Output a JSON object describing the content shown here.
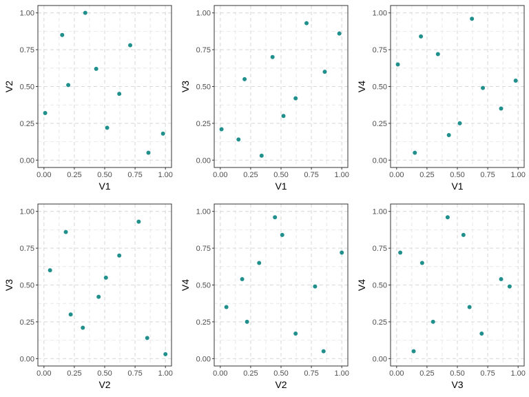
{
  "chart_data": {
    "type": "scatter",
    "point_color": "#21908C",
    "grid": true,
    "variables": {
      "V1": [
        0.01,
        0.15,
        0.2,
        0.34,
        0.43,
        0.52,
        0.62,
        0.71,
        0.86,
        0.98
      ],
      "V2": [
        0.32,
        0.85,
        0.51,
        1.0,
        0.62,
        0.22,
        0.45,
        0.78,
        0.05,
        0.18
      ],
      "V3": [
        0.21,
        0.14,
        0.55,
        0.03,
        0.7,
        0.3,
        0.42,
        0.93,
        0.6,
        0.86
      ],
      "V4": [
        0.65,
        0.05,
        0.84,
        0.72,
        0.17,
        0.25,
        0.96,
        0.49,
        0.35,
        0.54
      ]
    },
    "panels": [
      {
        "x": "V1",
        "y": "V2",
        "xlabel": "V1",
        "ylabel": "V2"
      },
      {
        "x": "V1",
        "y": "V3",
        "xlabel": "V1",
        "ylabel": "V3"
      },
      {
        "x": "V1",
        "y": "V4",
        "xlabel": "V1",
        "ylabel": "V4"
      },
      {
        "x": "V2",
        "y": "V3",
        "xlabel": "V2",
        "ylabel": "V3"
      },
      {
        "x": "V2",
        "y": "V4",
        "xlabel": "V2",
        "ylabel": "V4"
      },
      {
        "x": "V3",
        "y": "V4",
        "xlabel": "V3",
        "ylabel": "V4"
      }
    ],
    "xlim": [
      -0.05,
      1.05
    ],
    "ylim": [
      -0.05,
      1.05
    ],
    "ticks": [
      0,
      0.25,
      0.5,
      0.75,
      1
    ],
    "tick_labels": [
      "0.00",
      "0.25",
      "0.50",
      "0.75",
      "1.00"
    ]
  }
}
